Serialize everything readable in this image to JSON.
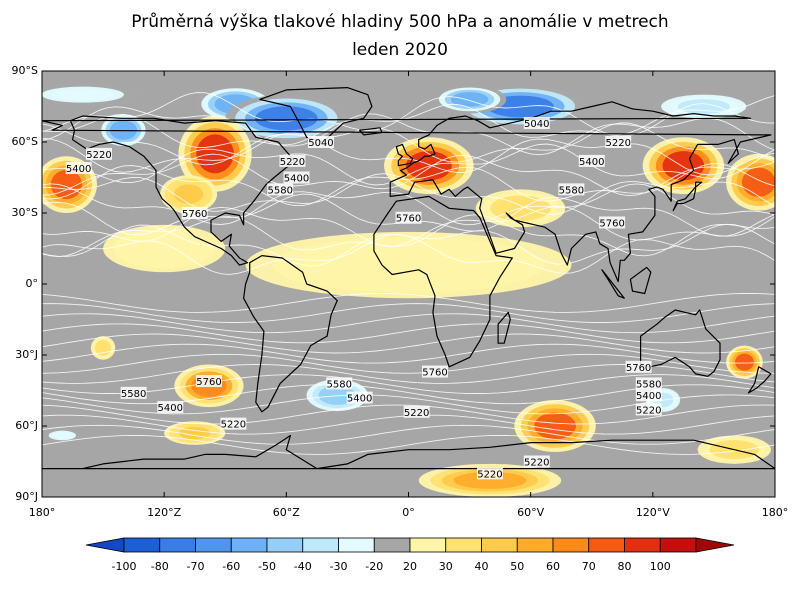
{
  "title": {
    "line1": "Průměrná výška tlakové hladiny 500 hPa a anomálie v metrech",
    "line2": "leden 2020"
  },
  "lat_labels": [
    "90°S",
    "60°S",
    "30°S",
    "0°",
    "30°J",
    "60°J",
    "90°J"
  ],
  "lon_labels": [
    "180°",
    "120°Z",
    "60°Z",
    "0°",
    "60°V",
    "120°V",
    "180°"
  ],
  "contour_labels": [
    {
      "text": "5040",
      "lon": -43,
      "lat": 60
    },
    {
      "text": "5040",
      "lon": 63,
      "lat": 68
    },
    {
      "text": "5220",
      "lon": -152,
      "lat": 55
    },
    {
      "text": "5220",
      "lon": -57,
      "lat": 52
    },
    {
      "text": "5220",
      "lon": 103,
      "lat": 60
    },
    {
      "text": "5400",
      "lon": -162,
      "lat": 49
    },
    {
      "text": "5400",
      "lon": -55,
      "lat": 45
    },
    {
      "text": "5400",
      "lon": 90,
      "lat": 52
    },
    {
      "text": "5580",
      "lon": -63,
      "lat": 40
    },
    {
      "text": "5580",
      "lon": 80,
      "lat": 40
    },
    {
      "text": "5760",
      "lon": -105,
      "lat": 30
    },
    {
      "text": "5760",
      "lon": 0,
      "lat": 28
    },
    {
      "text": "5760",
      "lon": 100,
      "lat": 26
    },
    {
      "text": "5580",
      "lon": -135,
      "lat": -46
    },
    {
      "text": "5400",
      "lon": -117,
      "lat": -52
    },
    {
      "text": "5760",
      "lon": -98,
      "lat": -41
    },
    {
      "text": "5580",
      "lon": -34,
      "lat": -42
    },
    {
      "text": "5400",
      "lon": -24,
      "lat": -48
    },
    {
      "text": "5220",
      "lon": 4,
      "lat": -54
    },
    {
      "text": "5760",
      "lon": 13,
      "lat": -37
    },
    {
      "text": "5220",
      "lon": -86,
      "lat": -59
    },
    {
      "text": "5760",
      "lon": 113,
      "lat": -35
    },
    {
      "text": "5580",
      "lon": 118,
      "lat": -42
    },
    {
      "text": "5400",
      "lon": 118,
      "lat": -47
    },
    {
      "text": "5220",
      "lon": 118,
      "lat": -53
    },
    {
      "text": "5220",
      "lon": 63,
      "lat": -75
    },
    {
      "text": "5220",
      "lon": 40,
      "lat": -80
    }
  ],
  "colorbar": {
    "labels": [
      "-100",
      "-80",
      "-70",
      "-60",
      "-50",
      "-40",
      "-30",
      "-20",
      "20",
      "30",
      "40",
      "50",
      "60",
      "70",
      "80",
      "100"
    ],
    "colors": [
      "#1c5fd6",
      "#3a7de6",
      "#4f95ee",
      "#6db0f5",
      "#95cff7",
      "#bfe9fb",
      "#e3fbff",
      "#a6a6a6",
      "#fff4a8",
      "#ffe070",
      "#ffc94a",
      "#ffab2a",
      "#ff8a1a",
      "#f55a14",
      "#e03010",
      "#c40f0c"
    ]
  },
  "anomaly_regions": [
    {
      "lon": -140,
      "lat": 65,
      "rx": 13,
      "ry": 8,
      "value": -60
    },
    {
      "lon": -85,
      "lat": 76,
      "rx": 20,
      "ry": 8,
      "value": -60
    },
    {
      "lon": -60,
      "lat": 70,
      "rx": 30,
      "ry": 10,
      "value": -80
    },
    {
      "lon": 55,
      "lat": 75,
      "rx": 32,
      "ry": 9,
      "value": -80
    },
    {
      "lon": 30,
      "lat": 78,
      "rx": 18,
      "ry": 6,
      "value": -60
    },
    {
      "lon": 145,
      "lat": 75,
      "rx": 25,
      "ry": 6,
      "value": -40
    },
    {
      "lon": -160,
      "lat": 80,
      "rx": 30,
      "ry": 5,
      "value": -30
    },
    {
      "lon": -168,
      "lat": 42,
      "rx": 15,
      "ry": 12,
      "value": 70
    },
    {
      "lon": 172,
      "lat": 43,
      "rx": 16,
      "ry": 12,
      "value": 70
    },
    {
      "lon": -95,
      "lat": 55,
      "rx": 18,
      "ry": 16,
      "value": 80
    },
    {
      "lon": -108,
      "lat": 38,
      "rx": 14,
      "ry": 8,
      "value": 40
    },
    {
      "lon": 10,
      "lat": 50,
      "rx": 22,
      "ry": 12,
      "value": 80
    },
    {
      "lon": 135,
      "lat": 50,
      "rx": 20,
      "ry": 12,
      "value": 80
    },
    {
      "lon": 55,
      "lat": 32,
      "rx": 22,
      "ry": 8,
      "value": 30
    },
    {
      "lon": 0,
      "lat": 8,
      "rx": 80,
      "ry": 14,
      "value": 20
    },
    {
      "lon": -120,
      "lat": 15,
      "rx": 30,
      "ry": 10,
      "value": 20
    },
    {
      "lon": -150,
      "lat": -27,
      "rx": 6,
      "ry": 5,
      "value": 30
    },
    {
      "lon": -98,
      "lat": -43,
      "rx": 17,
      "ry": 9,
      "value": 60
    },
    {
      "lon": -35,
      "lat": -47,
      "rx": 18,
      "ry": 8,
      "value": -50
    },
    {
      "lon": 72,
      "lat": -60,
      "rx": 20,
      "ry": 11,
      "value": 70
    },
    {
      "lon": 40,
      "lat": -83,
      "rx": 35,
      "ry": 7,
      "value": 50
    },
    {
      "lon": -105,
      "lat": -63,
      "rx": 15,
      "ry": 5,
      "value": 40
    },
    {
      "lon": 165,
      "lat": -33,
      "rx": 9,
      "ry": 7,
      "value": 70
    },
    {
      "lon": 125,
      "lat": -49,
      "rx": 10,
      "ry": 6,
      "value": -40
    },
    {
      "lon": -170,
      "lat": -64,
      "rx": 10,
      "ry": 3,
      "value": -30
    },
    {
      "lon": 160,
      "lat": -70,
      "rx": 18,
      "ry": 6,
      "value": 30
    }
  ],
  "height_contour_levels": [
    5040,
    5100,
    5160,
    5220,
    5280,
    5340,
    5400,
    5460,
    5520,
    5580,
    5640,
    5700,
    5760,
    5820,
    5880
  ],
  "land_outlines": [
    {
      "name": "North America",
      "points": [
        [
          -166,
          69
        ],
        [
          -160,
          71
        ],
        [
          -141,
          70
        ],
        [
          -125,
          70
        ],
        [
          -110,
          68
        ],
        [
          -95,
          69
        ],
        [
          -80,
          68
        ],
        [
          -75,
          62
        ],
        [
          -64,
          60
        ],
        [
          -56,
          52
        ],
        [
          -66,
          45
        ],
        [
          -70,
          42
        ],
        [
          -76,
          35
        ],
        [
          -81,
          30
        ],
        [
          -81,
          25
        ],
        [
          -83,
          29
        ],
        [
          -90,
          30
        ],
        [
          -97,
          27
        ],
        [
          -97,
          22
        ],
        [
          -92,
          18
        ],
        [
          -87,
          21
        ],
        [
          -88,
          16
        ],
        [
          -83,
          11
        ],
        [
          -79,
          9
        ],
        [
          -83,
          8
        ],
        [
          -87,
          12
        ],
        [
          -92,
          15
        ],
        [
          -105,
          20
        ],
        [
          -110,
          24
        ],
        [
          -115,
          31
        ],
        [
          -117,
          33
        ],
        [
          -121,
          36
        ],
        [
          -124,
          41
        ],
        [
          -124,
          48
        ],
        [
          -130,
          54
        ],
        [
          -137,
          58
        ],
        [
          -145,
          60
        ],
        [
          -152,
          59
        ],
        [
          -158,
          57
        ],
        [
          -165,
          61
        ],
        [
          -164,
          65
        ]
      ]
    },
    {
      "name": "Greenland",
      "points": [
        [
          -73,
          78
        ],
        [
          -60,
          82
        ],
        [
          -30,
          83
        ],
        [
          -20,
          80
        ],
        [
          -18,
          75
        ],
        [
          -22,
          70
        ],
        [
          -32,
          68
        ],
        [
          -42,
          60
        ],
        [
          -50,
          62
        ],
        [
          -53,
          67
        ],
        [
          -58,
          75
        ]
      ]
    },
    {
      "name": "South America",
      "points": [
        [
          -78,
          9
        ],
        [
          -72,
          12
        ],
        [
          -62,
          11
        ],
        [
          -52,
          5
        ],
        [
          -50,
          0
        ],
        [
          -40,
          -3
        ],
        [
          -35,
          -7
        ],
        [
          -38,
          -13
        ],
        [
          -40,
          -22
        ],
        [
          -48,
          -26
        ],
        [
          -53,
          -34
        ],
        [
          -58,
          -38
        ],
        [
          -63,
          -42
        ],
        [
          -66,
          -47
        ],
        [
          -69,
          -52
        ],
        [
          -72,
          -54
        ],
        [
          -75,
          -50
        ],
        [
          -74,
          -42
        ],
        [
          -72,
          -30
        ],
        [
          -71,
          -20
        ],
        [
          -76,
          -14
        ],
        [
          -81,
          -6
        ],
        [
          -80,
          0
        ],
        [
          -78,
          5
        ]
      ]
    },
    {
      "name": "Africa",
      "points": [
        [
          -17,
          21
        ],
        [
          -10,
          30
        ],
        [
          -6,
          35
        ],
        [
          10,
          37
        ],
        [
          20,
          32
        ],
        [
          32,
          31
        ],
        [
          35,
          28
        ],
        [
          43,
          12
        ],
        [
          51,
          11
        ],
        [
          45,
          3
        ],
        [
          40,
          -5
        ],
        [
          40,
          -15
        ],
        [
          35,
          -24
        ],
        [
          30,
          -31
        ],
        [
          20,
          -35
        ],
        [
          18,
          -30
        ],
        [
          14,
          -22
        ],
        [
          12,
          -12
        ],
        [
          13,
          -5
        ],
        [
          9,
          4
        ],
        [
          5,
          6
        ],
        [
          -8,
          4
        ],
        [
          -13,
          8
        ],
        [
          -17,
          14
        ]
      ]
    },
    {
      "name": "Eurasia",
      "points": [
        [
          -9,
          43
        ],
        [
          -9,
          37
        ],
        [
          0,
          38
        ],
        [
          3,
          43
        ],
        [
          12,
          44
        ],
        [
          16,
          38
        ],
        [
          20,
          40
        ],
        [
          23,
          37
        ],
        [
          27,
          40
        ],
        [
          29,
          41
        ],
        [
          36,
          36
        ],
        [
          35,
          32
        ],
        [
          43,
          13
        ],
        [
          52,
          15
        ],
        [
          57,
          22
        ],
        [
          56,
          25
        ],
        [
          50,
          28
        ],
        [
          48,
          30
        ],
        [
          52,
          27
        ],
        [
          57,
          26
        ],
        [
          62,
          25
        ],
        [
          67,
          24
        ],
        [
          72,
          21
        ],
        [
          75,
          13
        ],
        [
          78,
          8
        ],
        [
          80,
          15
        ],
        [
          87,
          21
        ],
        [
          92,
          22
        ],
        [
          94,
          17
        ],
        [
          98,
          15
        ],
        [
          99,
          9
        ],
        [
          103,
          1
        ],
        [
          104,
          10
        ],
        [
          106,
          10
        ],
        [
          109,
          13
        ],
        [
          108,
          21
        ],
        [
          115,
          22
        ],
        [
          121,
          29
        ],
        [
          121,
          37
        ],
        [
          118,
          40
        ],
        [
          122,
          41
        ],
        [
          125,
          40
        ],
        [
          129,
          35
        ],
        [
          129,
          42
        ],
        [
          135,
          44
        ],
        [
          140,
          48
        ],
        [
          138,
          53
        ],
        [
          142,
          59
        ],
        [
          152,
          59
        ],
        [
          160,
          61
        ],
        [
          162,
          55
        ],
        [
          157,
          51
        ],
        [
          163,
          60
        ],
        [
          178,
          63
        ],
        [
          -175,
          65
        ],
        [
          -170,
          67
        ],
        [
          -180,
          69
        ],
        [
          168,
          70
        ],
        [
          160,
          71
        ],
        [
          150,
          71
        ],
        [
          140,
          72
        ],
        [
          130,
          71
        ],
        [
          120,
          73
        ],
        [
          110,
          74
        ],
        [
          100,
          77
        ],
        [
          90,
          75
        ],
        [
          80,
          73
        ],
        [
          70,
          73
        ],
        [
          60,
          70
        ],
        [
          50,
          68
        ],
        [
          40,
          66
        ],
        [
          34,
          69
        ],
        [
          28,
          71
        ],
        [
          20,
          70
        ],
        [
          14,
          67
        ],
        [
          10,
          63
        ],
        [
          5,
          61
        ],
        [
          5,
          58
        ],
        [
          8,
          57
        ],
        [
          11,
          59
        ],
        [
          13,
          55
        ],
        [
          10,
          54
        ],
        [
          8,
          54
        ],
        [
          5,
          52
        ],
        [
          2,
          51
        ],
        [
          -1,
          49
        ],
        [
          -4,
          48
        ],
        [
          -1,
          46
        ]
      ]
    },
    {
      "name": "Australia",
      "points": [
        [
          114,
          -22
        ],
        [
          114,
          -34
        ],
        [
          118,
          -35
        ],
        [
          124,
          -34
        ],
        [
          131,
          -31
        ],
        [
          138,
          -35
        ],
        [
          141,
          -38
        ],
        [
          147,
          -39
        ],
        [
          150,
          -37
        ],
        [
          153,
          -32
        ],
        [
          153,
          -25
        ],
        [
          146,
          -19
        ],
        [
          143,
          -11
        ],
        [
          141,
          -13
        ],
        [
          136,
          -12
        ],
        [
          131,
          -11
        ],
        [
          126,
          -14
        ],
        [
          122,
          -17
        ]
      ]
    },
    {
      "name": "Antarctica",
      "points": [
        [
          -180,
          -78
        ],
        [
          -160,
          -78
        ],
        [
          -150,
          -76
        ],
        [
          -130,
          -74
        ],
        [
          -110,
          -74
        ],
        [
          -100,
          -72
        ],
        [
          -90,
          -72
        ],
        [
          -75,
          -73
        ],
        [
          -65,
          -68
        ],
        [
          -58,
          -64
        ],
        [
          -60,
          -70
        ],
        [
          -45,
          -78
        ],
        [
          -30,
          -76
        ],
        [
          -20,
          -72
        ],
        [
          0,
          -70
        ],
        [
          20,
          -70
        ],
        [
          40,
          -69
        ],
        [
          60,
          -67
        ],
        [
          80,
          -67
        ],
        [
          100,
          -66
        ],
        [
          120,
          -66
        ],
        [
          140,
          -66
        ],
        [
          160,
          -70
        ],
        [
          170,
          -72
        ],
        [
          180,
          -78
        ]
      ]
    },
    {
      "name": "Great Britain",
      "points": [
        [
          -5,
          50
        ],
        [
          1,
          51
        ],
        [
          2,
          53
        ],
        [
          -1,
          55
        ],
        [
          -2,
          57
        ],
        [
          -3,
          59
        ],
        [
          -6,
          58
        ],
        [
          -5,
          55
        ],
        [
          -3,
          54
        ],
        [
          -5,
          52
        ]
      ]
    },
    {
      "name": "Japan",
      "points": [
        [
          130,
          31
        ],
        [
          132,
          34
        ],
        [
          135,
          34
        ],
        [
          140,
          36
        ],
        [
          141,
          40
        ],
        [
          141,
          43
        ],
        [
          144,
          43
        ],
        [
          141,
          41
        ],
        [
          139,
          39
        ],
        [
          136,
          36
        ],
        [
          132,
          35
        ]
      ]
    },
    {
      "name": "Madagascar",
      "points": [
        [
          44,
          -25
        ],
        [
          47,
          -25
        ],
        [
          50,
          -15
        ],
        [
          49,
          -12
        ],
        [
          44,
          -17
        ]
      ]
    },
    {
      "name": "New Zealand",
      "points": [
        [
          172,
          -35
        ],
        [
          178,
          -38
        ],
        [
          175,
          -41
        ],
        [
          171,
          -44
        ],
        [
          167,
          -46
        ],
        [
          170,
          -42
        ]
      ]
    },
    {
      "name": "Borneo",
      "points": [
        [
          109,
          2
        ],
        [
          117,
          7
        ],
        [
          119,
          5
        ],
        [
          116,
          -4
        ],
        [
          110,
          -3
        ]
      ]
    },
    {
      "name": "Sumatra",
      "points": [
        [
          95,
          6
        ],
        [
          106,
          -6
        ],
        [
          103,
          -5
        ],
        [
          98,
          2
        ]
      ]
    },
    {
      "name": "Iceland",
      "points": [
        [
          -24,
          65
        ],
        [
          -14,
          66
        ],
        [
          -13,
          64
        ],
        [
          -22,
          63
        ]
      ]
    }
  ]
}
